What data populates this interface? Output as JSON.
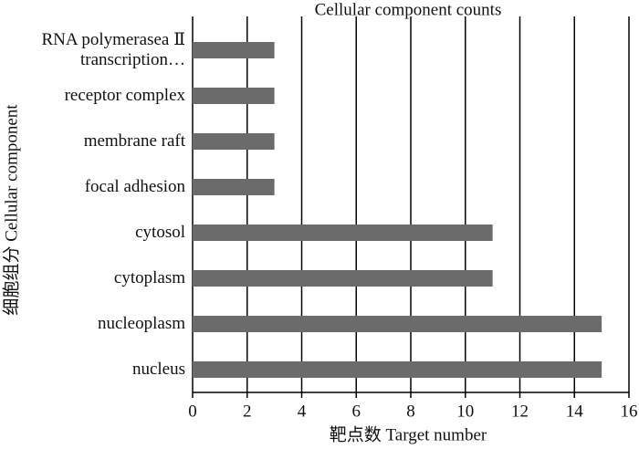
{
  "chart_data": {
    "type": "hbar",
    "title": "Cellular component counts",
    "x_label": "靶点数 Target number",
    "y_label": "细胞组分 Cellular component",
    "categories": [
      "RNA polymerasea Ⅱ transcription…",
      "receptor complex",
      "membrane raft",
      "focal adhesion",
      "cytosol",
      "cytoplasm",
      "nucleoplasm",
      "nucleus"
    ],
    "values": [
      3,
      3,
      3,
      3,
      11,
      11,
      15,
      15
    ],
    "color": "#6b6b6b",
    "xlim": [
      0,
      16
    ],
    "xticks": [
      0,
      2,
      4,
      6,
      8,
      10,
      12,
      14,
      16
    ],
    "grid": true
  }
}
